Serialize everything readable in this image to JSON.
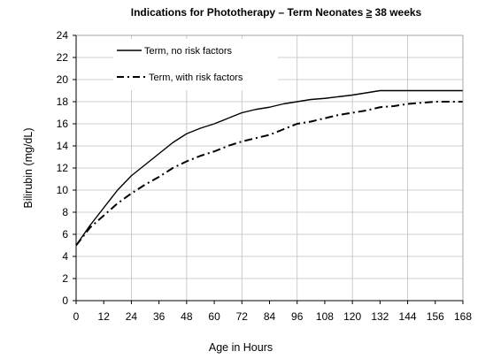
{
  "chart_data": {
    "type": "line",
    "title_main": "Indications for Phototherapy – Term Neonates ",
    "title_ge": "≥",
    "title_rest": " 38 weeks",
    "xlabel": "Age in Hours",
    "ylabel": "Bilirubin (mg/dL)",
    "xlim": [
      0,
      168
    ],
    "ylim": [
      0,
      24
    ],
    "x_ticks": [
      0,
      12,
      24,
      36,
      48,
      60,
      72,
      84,
      96,
      108,
      120,
      132,
      144,
      156,
      168
    ],
    "y_ticks": [
      0,
      2,
      4,
      6,
      8,
      10,
      12,
      14,
      16,
      18,
      20,
      22,
      24
    ],
    "grid": true,
    "legend_position": "top-left",
    "series": [
      {
        "name": "Term, no risk factors",
        "line_style": "solid",
        "x": [
          0,
          6,
          12,
          18,
          24,
          30,
          36,
          42,
          48,
          54,
          60,
          66,
          72,
          78,
          84,
          90,
          96,
          102,
          108,
          114,
          120,
          126,
          132,
          138,
          144,
          150,
          156,
          162,
          168
        ],
        "y": [
          5,
          6.8,
          8.4,
          10,
          11.3,
          12.3,
          13.3,
          14.3,
          15.1,
          15.6,
          16,
          16.5,
          17,
          17.3,
          17.5,
          17.8,
          18,
          18.2,
          18.3,
          18.45,
          18.6,
          18.8,
          19,
          19,
          19,
          19,
          19,
          19,
          19
        ]
      },
      {
        "name": "Term, with risk factors",
        "line_style": "dash-dot",
        "x": [
          0,
          6,
          12,
          18,
          24,
          30,
          36,
          42,
          48,
          54,
          60,
          66,
          72,
          78,
          84,
          90,
          96,
          102,
          108,
          114,
          120,
          126,
          132,
          138,
          144,
          150,
          156,
          162,
          168
        ],
        "y": [
          5,
          6.6,
          7.7,
          8.8,
          9.7,
          10.5,
          11.2,
          12,
          12.6,
          13.1,
          13.5,
          14,
          14.4,
          14.7,
          15,
          15.5,
          16,
          16.2,
          16.5,
          16.8,
          17,
          17.2,
          17.5,
          17.6,
          17.8,
          17.9,
          18,
          18,
          18
        ]
      }
    ]
  }
}
